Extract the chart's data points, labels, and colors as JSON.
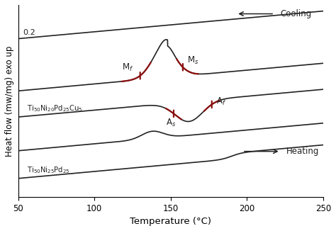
{
  "xlim": [
    50,
    250
  ],
  "xlabel": "Temperature (°C)",
  "ylabel": "Heat flow (mw/mg) exo up",
  "line_color_black": "#222222",
  "line_color_red": "#8b1010",
  "cooling_label": "Cooling",
  "heating_label": "Heating",
  "alloy1_label": "Ti$_{50}$Ni$_{20}$Pd$_{25}$Cu$_{5}$",
  "alloy2_label": "Ti$_{50}$Ni$_{25}$Pd$_{25}$",
  "Mf_label": "M$_f$",
  "Ms_label": "M$_s$",
  "As_label": "A$_s$",
  "Af_label": "A$_f$",
  "label_02": "0.2",
  "xticks": [
    50,
    100,
    150,
    200,
    250
  ]
}
